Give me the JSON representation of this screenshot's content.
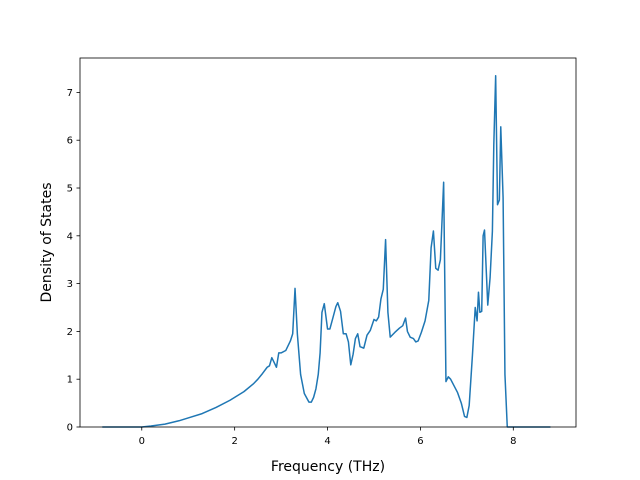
{
  "chart_data": {
    "type": "line",
    "title": "",
    "xlabel": "Frequency (THz)",
    "ylabel": "Density of States",
    "xlim": [
      -1.33,
      9.35
    ],
    "ylim": [
      0,
      7.72
    ],
    "x_ticks": [
      0,
      2,
      4,
      6,
      8
    ],
    "x_tick_labels": [
      "0",
      "2",
      "4",
      "6",
      "8"
    ],
    "y_ticks": [
      0,
      1,
      2,
      3,
      4,
      5,
      6,
      7
    ],
    "y_tick_labels": [
      "0",
      "1",
      "2",
      "3",
      "4",
      "5",
      "6",
      "7"
    ],
    "grid": false,
    "line_color": "#1f77b4",
    "series": [
      {
        "x": [
          -0.85,
          0.0,
          0.2,
          0.5,
          0.8,
          1.0,
          1.3,
          1.6,
          1.9,
          2.0,
          2.2,
          2.4,
          2.5,
          2.6,
          2.7,
          2.75,
          2.8,
          2.85,
          2.9,
          2.95,
          3.0,
          3.1,
          3.2,
          3.25,
          3.3,
          3.35,
          3.42,
          3.5,
          3.6,
          3.65,
          3.7,
          3.75,
          3.8,
          3.84,
          3.88,
          3.93,
          4.0,
          4.05,
          4.12,
          4.18,
          4.22,
          4.28,
          4.34,
          4.4,
          4.45,
          4.5,
          4.55,
          4.6,
          4.65,
          4.7,
          4.78,
          4.85,
          4.92,
          5.0,
          5.05,
          5.1,
          5.15,
          5.2,
          5.25,
          5.3,
          5.35,
          5.45,
          5.55,
          5.62,
          5.68,
          5.72,
          5.78,
          5.85,
          5.9,
          5.95,
          6.02,
          6.1,
          6.18,
          6.23,
          6.28,
          6.33,
          6.38,
          6.43,
          6.5,
          6.55,
          6.6,
          6.65,
          6.72,
          6.8,
          6.88,
          6.95,
          7.0,
          7.05,
          7.12,
          7.18,
          7.22,
          7.25,
          7.28,
          7.32,
          7.35,
          7.38,
          7.45,
          7.5,
          7.55,
          7.58,
          7.62,
          7.66,
          7.7,
          7.73,
          7.78,
          7.82,
          7.87,
          7.91,
          7.95,
          8.0,
          8.05,
          8.8
        ],
        "values": [
          0.0,
          0.0,
          0.02,
          0.06,
          0.13,
          0.19,
          0.28,
          0.41,
          0.56,
          0.62,
          0.74,
          0.9,
          1.0,
          1.12,
          1.25,
          1.28,
          1.45,
          1.35,
          1.25,
          1.55,
          1.55,
          1.6,
          1.8,
          1.95,
          2.9,
          1.95,
          1.1,
          0.7,
          0.52,
          0.52,
          0.62,
          0.8,
          1.1,
          1.55,
          2.4,
          2.58,
          2.05,
          2.05,
          2.3,
          2.52,
          2.6,
          2.42,
          1.95,
          1.95,
          1.78,
          1.3,
          1.52,
          1.85,
          1.95,
          1.68,
          1.65,
          1.92,
          2.02,
          2.25,
          2.22,
          2.3,
          2.68,
          2.88,
          3.92,
          2.4,
          1.88,
          1.98,
          2.07,
          2.12,
          2.28,
          2.0,
          1.88,
          1.85,
          1.78,
          1.8,
          1.98,
          2.22,
          2.65,
          3.75,
          4.1,
          3.32,
          3.28,
          3.5,
          5.12,
          0.95,
          1.05,
          1.0,
          0.87,
          0.72,
          0.5,
          0.22,
          0.2,
          0.45,
          1.5,
          2.5,
          2.22,
          2.82,
          2.4,
          2.42,
          4.0,
          4.12,
          2.55,
          3.12,
          4.1,
          5.9,
          7.35,
          4.65,
          4.75,
          6.28,
          4.8,
          1.1,
          0.0,
          0.0,
          0.0,
          0.0,
          0.0,
          0.0
        ]
      }
    ]
  }
}
